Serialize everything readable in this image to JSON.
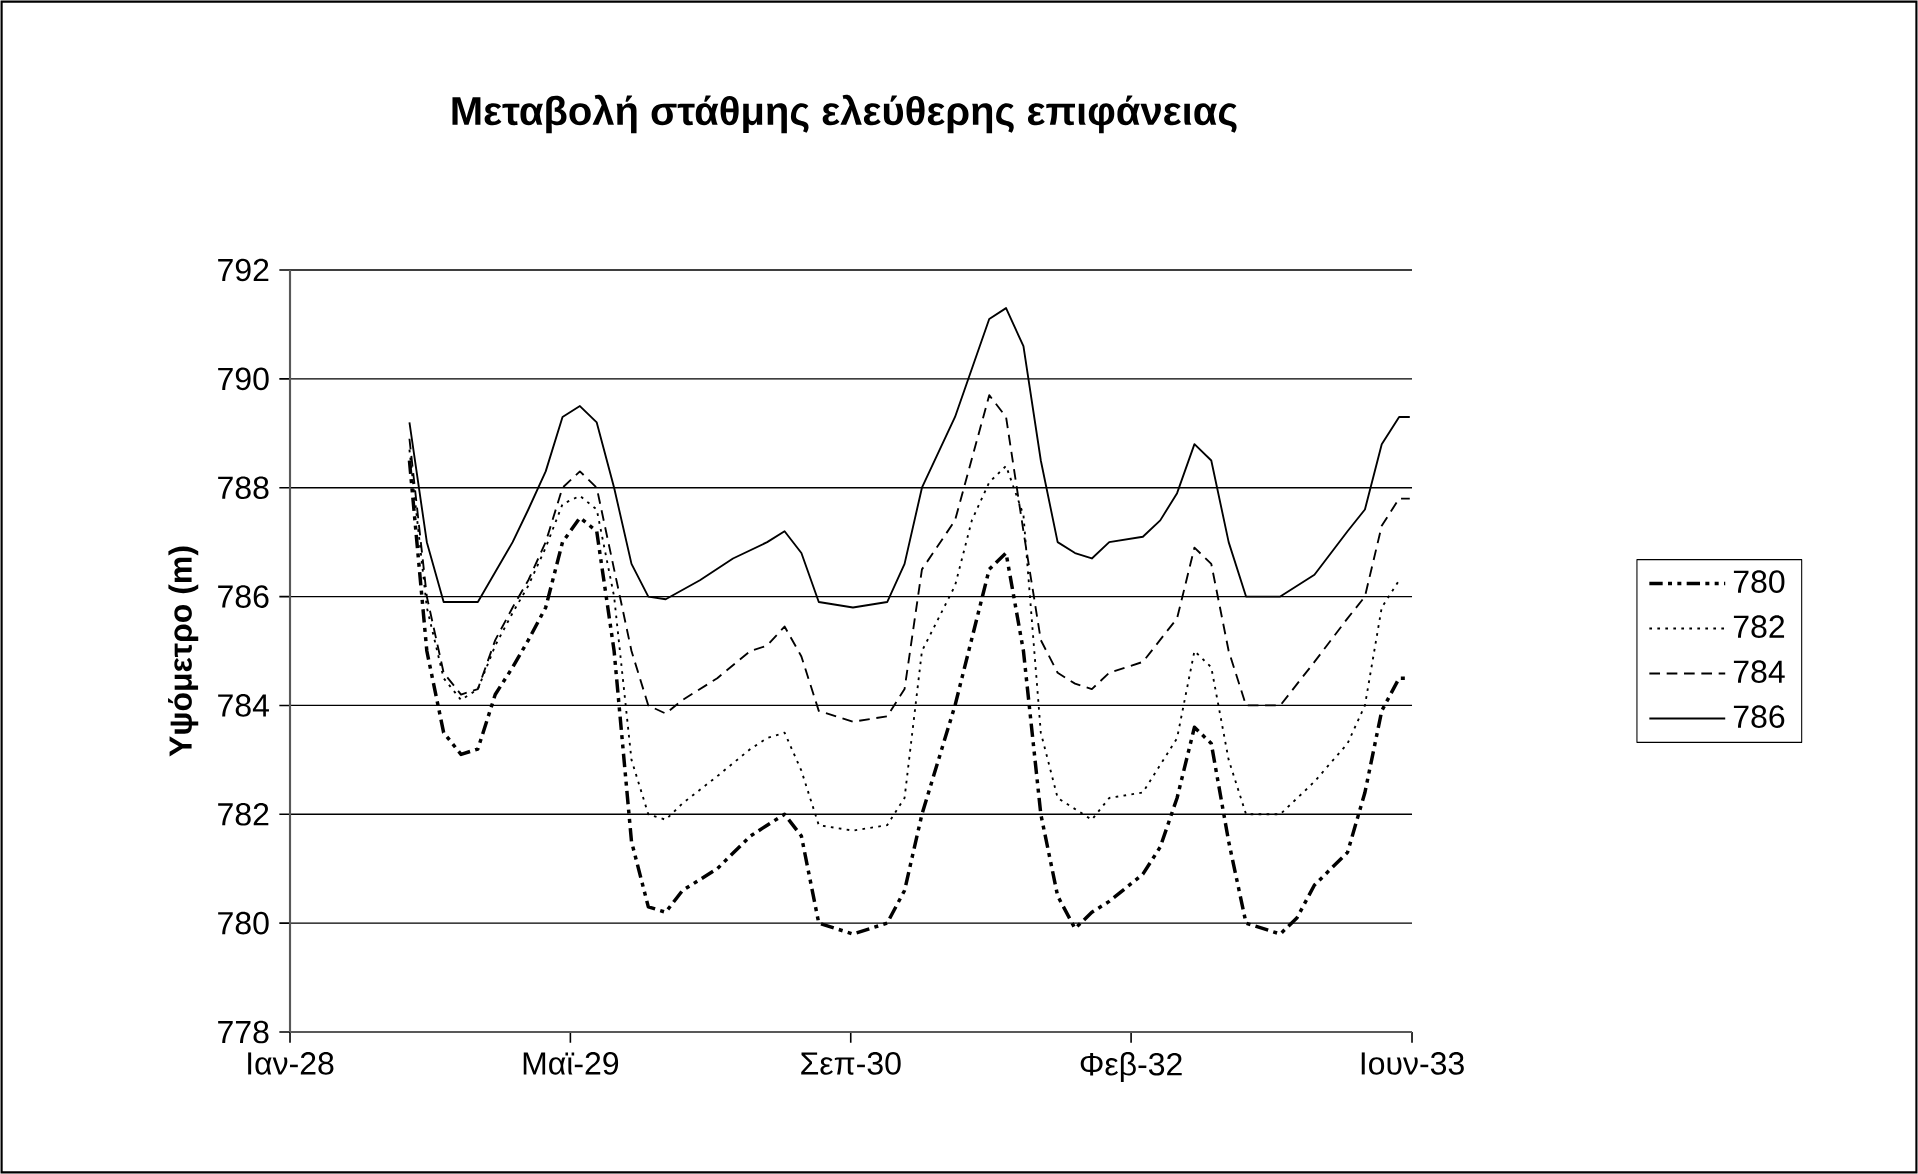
{
  "chart_data": {
    "type": "line",
    "title": "Μεταβολή στάθμης ελεύθερης επιφάνειας",
    "ylabel": "Υψόμετρο (m)",
    "xlim": [
      "1928-01-01",
      "1933-06-24"
    ],
    "xticks": [
      {
        "value": "1928-01-01",
        "label": "Ιαν-28"
      },
      {
        "value": "1929-05-15",
        "label": "Μαϊ-29"
      },
      {
        "value": "1930-09-27",
        "label": "Σεπ-30"
      },
      {
        "value": "1932-02-09",
        "label": "Φεβ-32"
      },
      {
        "value": "1933-06-24",
        "label": "Ιουν-33"
      }
    ],
    "ylim": [
      778,
      792
    ],
    "yticks": [
      778,
      780,
      782,
      784,
      786,
      788,
      790,
      792
    ],
    "grid": "y",
    "legend": "right",
    "marker": "none",
    "series": [
      {
        "name": "780",
        "color": "#000000",
        "line_style": "dashdot",
        "x": [
          "1928-08",
          "1928-09",
          "1928-10",
          "1928-11",
          "1928-12",
          "1929-01",
          "1929-02",
          "1929-03",
          "1929-04",
          "1929-05",
          "1929-06",
          "1929-07",
          "1929-08",
          "1929-09",
          "1929-10",
          "1929-11",
          "1929-12",
          "1930-02",
          "1930-04",
          "1930-05",
          "1930-06",
          "1930-07",
          "1930-08",
          "1930-10",
          "1930-12",
          "1931-01",
          "1931-02",
          "1931-04",
          "1931-06",
          "1931-07",
          "1931-08",
          "1931-09",
          "1931-10",
          "1931-11",
          "1931-12",
          "1932-01",
          "1932-03",
          "1932-04",
          "1932-05",
          "1932-06",
          "1932-07",
          "1932-08",
          "1932-09",
          "1932-11",
          "1932-12",
          "1933-01",
          "1933-03",
          "1933-04",
          "1933-05",
          "1933-06",
          "1933-06-20"
        ],
        "values": [
          788.5,
          785.0,
          783.5,
          783.1,
          783.2,
          784.2,
          784.7,
          785.2,
          785.8,
          787.0,
          787.45,
          787.2,
          785.0,
          781.5,
          780.3,
          780.2,
          780.6,
          781.0,
          781.6,
          781.8,
          782.0,
          781.6,
          780.0,
          779.8,
          780.0,
          780.6,
          782.0,
          784.0,
          786.5,
          786.8,
          785.0,
          782.0,
          780.5,
          779.9,
          780.2,
          780.4,
          780.9,
          781.4,
          782.3,
          783.6,
          783.3,
          781.5,
          780.0,
          779.8,
          780.1,
          780.7,
          781.3,
          782.4,
          783.9,
          784.5,
          784.5
        ]
      },
      {
        "name": "782",
        "color": "#000000",
        "line_style": "dotted",
        "x": [
          "1928-08",
          "1928-09",
          "1928-10",
          "1928-11",
          "1928-12",
          "1929-01",
          "1929-02",
          "1929-03",
          "1929-04",
          "1929-05",
          "1929-06",
          "1929-07",
          "1929-08",
          "1929-09",
          "1929-10",
          "1929-11",
          "1929-12",
          "1930-02",
          "1930-04",
          "1930-05",
          "1930-06",
          "1930-07",
          "1930-08",
          "1930-10",
          "1930-12",
          "1931-01",
          "1931-02",
          "1931-04",
          "1931-05",
          "1931-06",
          "1931-07",
          "1931-08",
          "1931-09",
          "1931-10",
          "1931-12",
          "1932-01",
          "1932-03",
          "1932-05",
          "1932-06",
          "1932-07",
          "1932-08",
          "1932-09",
          "1932-11",
          "1933-01",
          "1933-03",
          "1933-04",
          "1933-05",
          "1933-06"
        ],
        "values": [
          788.7,
          785.8,
          784.5,
          784.1,
          784.3,
          785.1,
          785.7,
          786.2,
          786.9,
          787.7,
          787.85,
          787.6,
          786.0,
          783.0,
          782.0,
          781.9,
          782.2,
          782.7,
          783.2,
          783.4,
          783.5,
          782.8,
          781.8,
          781.7,
          781.8,
          782.3,
          785.0,
          786.2,
          787.4,
          788.1,
          788.4,
          787.5,
          783.5,
          782.3,
          781.9,
          782.3,
          782.4,
          783.4,
          785.0,
          784.7,
          783.0,
          782.0,
          782.0,
          782.6,
          783.3,
          784.0,
          785.8,
          786.3
        ]
      },
      {
        "name": "784",
        "color": "#000000",
        "line_style": "dashed",
        "x": [
          "1928-08",
          "1928-09",
          "1928-10",
          "1928-11",
          "1928-12",
          "1929-01",
          "1929-02",
          "1929-03",
          "1929-04",
          "1929-05",
          "1929-06",
          "1929-07",
          "1929-08",
          "1929-09",
          "1929-10",
          "1929-11",
          "1929-12",
          "1930-02",
          "1930-04",
          "1930-05",
          "1930-06",
          "1930-07",
          "1930-08",
          "1930-10",
          "1930-12",
          "1931-01",
          "1931-02",
          "1931-04",
          "1931-06",
          "1931-07",
          "1931-08",
          "1931-09",
          "1931-10",
          "1931-11",
          "1931-12",
          "1932-01",
          "1932-03",
          "1932-05",
          "1932-06",
          "1932-07",
          "1932-08",
          "1932-09",
          "1932-11",
          "1933-01",
          "1933-03",
          "1933-04",
          "1933-05",
          "1933-06",
          "1933-06-20"
        ],
        "values": [
          788.9,
          786.0,
          784.6,
          784.2,
          784.3,
          785.2,
          785.8,
          786.3,
          787.0,
          788.0,
          788.3,
          788.0,
          786.5,
          785.0,
          784.0,
          783.85,
          784.1,
          784.5,
          785.0,
          785.1,
          785.45,
          784.9,
          783.9,
          783.7,
          783.8,
          784.3,
          786.5,
          787.4,
          789.7,
          789.3,
          787.2,
          785.2,
          784.6,
          784.4,
          784.3,
          784.6,
          784.8,
          785.6,
          786.9,
          786.6,
          785.0,
          784.0,
          784.0,
          784.8,
          785.6,
          786.0,
          787.3,
          787.8,
          787.8
        ]
      },
      {
        "name": "786",
        "color": "#000000",
        "line_style": "solid",
        "x": [
          "1928-08",
          "1928-09",
          "1928-10",
          "1928-12",
          "1929-02",
          "1929-03",
          "1929-04",
          "1929-05",
          "1929-06",
          "1929-07",
          "1929-08",
          "1929-09",
          "1929-10",
          "1929-11",
          "1930-01",
          "1930-03",
          "1930-05",
          "1930-06",
          "1930-07",
          "1930-08",
          "1930-10",
          "1930-12",
          "1931-01",
          "1931-02",
          "1931-04",
          "1931-06",
          "1931-07",
          "1931-08",
          "1931-09",
          "1931-10",
          "1931-11",
          "1931-12",
          "1932-01",
          "1932-03",
          "1932-04",
          "1932-05",
          "1932-06",
          "1932-07",
          "1932-08",
          "1932-09",
          "1932-11",
          "1933-01",
          "1933-03",
          "1933-04",
          "1933-05",
          "1933-06",
          "1933-06-20"
        ],
        "values": [
          789.2,
          787.0,
          785.9,
          785.9,
          787.0,
          787.6,
          788.3,
          789.3,
          789.5,
          789.2,
          788.0,
          786.6,
          786.0,
          785.95,
          786.3,
          786.7,
          787.0,
          787.2,
          786.8,
          785.9,
          785.8,
          785.9,
          786.6,
          788.0,
          789.3,
          791.1,
          791.3,
          790.6,
          788.5,
          787.0,
          786.8,
          786.7,
          787.0,
          787.1,
          787.4,
          787.9,
          788.8,
          788.5,
          787.0,
          786.0,
          786.0,
          786.4,
          787.2,
          787.6,
          788.8,
          789.3,
          789.3
        ]
      }
    ]
  }
}
